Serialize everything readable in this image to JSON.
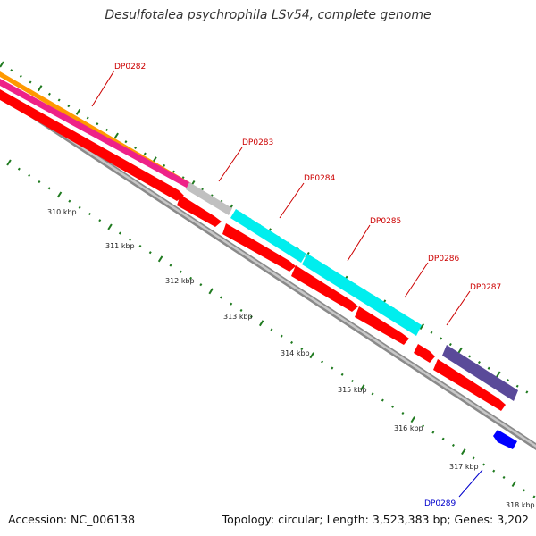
{
  "title": "Desulfotalea psychrophila LSv54, complete genome",
  "footer": {
    "accession": "Accession: NC_006138",
    "summary": "Topology: circular; Length: 3,523,383 bp; Genes: 3,202"
  },
  "scale_labels": [
    "310 kbp",
    "311 kbp",
    "312 kbp",
    "313 kbp",
    "314 kbp",
    "315 kbp",
    "316 kbp",
    "317 kbp",
    "318 kbp"
  ],
  "gene_labels": [
    {
      "text": "DP0282",
      "strand": "forward"
    },
    {
      "text": "DP0283",
      "strand": "forward"
    },
    {
      "text": "DP0284",
      "strand": "forward"
    },
    {
      "text": "DP0285",
      "strand": "forward"
    },
    {
      "text": "DP0286",
      "strand": "forward"
    },
    {
      "text": "DP0287",
      "strand": "forward"
    },
    {
      "text": "DP0289",
      "strand": "reverse"
    }
  ],
  "colors": {
    "label_forward": "#cc0000",
    "label_reverse": "#0000cc",
    "tick": "#1f7a1f",
    "backbone": "#8a8a8a",
    "cds": "#ff0000",
    "orange": "#ff9900",
    "magenta": "#ee2288",
    "gray": "#c0c0c0",
    "cyan": "#00eeee",
    "indigo": "#5a4a99",
    "blue": "#0000ff"
  }
}
